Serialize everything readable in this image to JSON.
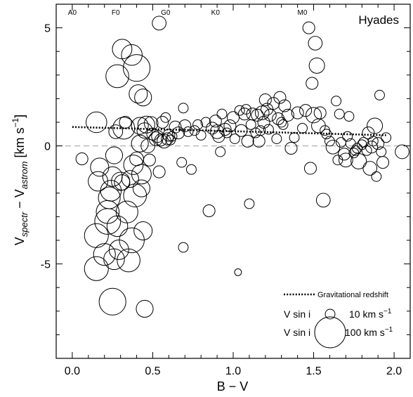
{
  "chart_data": {
    "type": "scatter",
    "title": "Hyades",
    "xlabel": "B − V",
    "ylabel": {
      "v1": "V",
      "sub1": "spectr",
      "minus": " − V",
      "sub2": "astrom",
      "units_open": " [km s",
      "units_exp": "−1",
      "units_close": "]"
    },
    "xlim": [
      -0.1,
      2.1
    ],
    "ylim": [
      -9.0,
      6.0
    ],
    "x_ticks": [
      0.0,
      0.5,
      1.0,
      1.5,
      2.0
    ],
    "x_tick_labels": [
      "0.0",
      "0.5",
      "1.0",
      "1.5",
      "2.0"
    ],
    "y_ticks": [
      -5,
      0,
      5
    ],
    "y_tick_labels": [
      "-5",
      "0",
      "5"
    ],
    "spectral_types": [
      {
        "label": "A0",
        "x": 0.0
      },
      {
        "label": "F0",
        "x": 0.27
      },
      {
        "label": "G0",
        "x": 0.58
      },
      {
        "label": "K0",
        "x": 0.89
      },
      {
        "label": "M0",
        "x": 1.43
      }
    ],
    "zero_line": {
      "y": 0,
      "style": "dashed",
      "color": "#b0b0b0"
    },
    "redshift_line": {
      "name": "Gravitational redshift",
      "x": [
        0.0,
        1.95
      ],
      "y": [
        0.8,
        0.45
      ]
    },
    "legend": {
      "position": "bottom-right",
      "vsini_label": "V sin i",
      "small": {
        "text": "10 km s",
        "exp": "−1",
        "vsini": 10
      },
      "large": {
        "text": "100 km s",
        "exp": "−1",
        "vsini": 100
      }
    },
    "points": [
      {
        "x": 0.06,
        "y": -0.55,
        "vsini": 15
      },
      {
        "x": 0.15,
        "y": 1.0,
        "vsini": 45
      },
      {
        "x": 0.16,
        "y": -1.5,
        "vsini": 40
      },
      {
        "x": 0.17,
        "y": -0.9,
        "vsini": 35
      },
      {
        "x": 0.15,
        "y": -3.8,
        "vsini": 60
      },
      {
        "x": 0.15,
        "y": -5.2,
        "vsini": 60
      },
      {
        "x": 0.2,
        "y": -4.6,
        "vsini": 50
      },
      {
        "x": 0.22,
        "y": -2.8,
        "vsini": 55
      },
      {
        "x": 0.22,
        "y": -3.2,
        "vsini": 70
      },
      {
        "x": 0.23,
        "y": -2.2,
        "vsini": 50
      },
      {
        "x": 0.24,
        "y": -1.9,
        "vsini": 45
      },
      {
        "x": 0.25,
        "y": -6.6,
        "vsini": 75
      },
      {
        "x": 0.26,
        "y": -4.8,
        "vsini": 45
      },
      {
        "x": 0.25,
        "y": -1.3,
        "vsini": 40
      },
      {
        "x": 0.26,
        "y": -0.4,
        "vsini": 30
      },
      {
        "x": 0.27,
        "y": 0.6,
        "vsini": 20
      },
      {
        "x": 0.28,
        "y": 2.95,
        "vsini": 55
      },
      {
        "x": 0.28,
        "y": -3.4,
        "vsini": 45
      },
      {
        "x": 0.29,
        "y": -4.4,
        "vsini": 40
      },
      {
        "x": 0.3,
        "y": -1.5,
        "vsini": 35
      },
      {
        "x": 0.31,
        "y": -1.55,
        "vsini": 25
      },
      {
        "x": 0.31,
        "y": 4.1,
        "vsini": 40
      },
      {
        "x": 0.32,
        "y": 0.75,
        "vsini": 50
      },
      {
        "x": 0.33,
        "y": 1.0,
        "vsini": 15
      },
      {
        "x": 0.34,
        "y": -2.8,
        "vsini": 50
      },
      {
        "x": 0.35,
        "y": -4.85,
        "vsini": 55
      },
      {
        "x": 0.36,
        "y": -1.4,
        "vsini": 30
      },
      {
        "x": 0.37,
        "y": -4.0,
        "vsini": 65
      },
      {
        "x": 0.37,
        "y": 3.85,
        "vsini": 45
      },
      {
        "x": 0.38,
        "y": -0.8,
        "vsini": 40
      },
      {
        "x": 0.39,
        "y": -2.1,
        "vsini": 55
      },
      {
        "x": 0.4,
        "y": 3.3,
        "vsini": 75
      },
      {
        "x": 0.4,
        "y": -0.55,
        "vsini": 20
      },
      {
        "x": 0.41,
        "y": 2.2,
        "vsini": 35
      },
      {
        "x": 0.42,
        "y": 0.85,
        "vsini": 30
      },
      {
        "x": 0.42,
        "y": 0.1,
        "vsini": 30
      },
      {
        "x": 0.43,
        "y": -1.2,
        "vsini": 40
      },
      {
        "x": 0.43,
        "y": -1.8,
        "vsini": 30
      },
      {
        "x": 0.44,
        "y": -3.6,
        "vsini": 35
      },
      {
        "x": 0.44,
        "y": 2.05,
        "vsini": 30
      },
      {
        "x": 0.45,
        "y": -6.9,
        "vsini": 30
      },
      {
        "x": 0.45,
        "y": 0.65,
        "vsini": 25
      },
      {
        "x": 0.46,
        "y": 0.9,
        "vsini": 30
      },
      {
        "x": 0.47,
        "y": 0.0,
        "vsini": 20
      },
      {
        "x": 0.48,
        "y": -0.6,
        "vsini": 15
      },
      {
        "x": 0.49,
        "y": 0.95,
        "vsini": 20
      },
      {
        "x": 0.5,
        "y": 0.5,
        "vsini": 15
      },
      {
        "x": 0.52,
        "y": 0.3,
        "vsini": 20
      },
      {
        "x": 0.53,
        "y": 0.4,
        "vsini": 15
      },
      {
        "x": 0.54,
        "y": -1.1,
        "vsini": 15
      },
      {
        "x": 0.54,
        "y": 5.2,
        "vsini": 20
      },
      {
        "x": 0.55,
        "y": 0.25,
        "vsini": 15
      },
      {
        "x": 0.56,
        "y": 1.0,
        "vsini": 15
      },
      {
        "x": 0.57,
        "y": 0.2,
        "vsini": 20
      },
      {
        "x": 0.58,
        "y": 1.2,
        "vsini": 10
      },
      {
        "x": 0.59,
        "y": 0.3,
        "vsini": 15
      },
      {
        "x": 0.6,
        "y": 0.45,
        "vsini": 15
      },
      {
        "x": 0.61,
        "y": 0.25,
        "vsini": 10
      },
      {
        "x": 0.62,
        "y": 0.4,
        "vsini": 10
      },
      {
        "x": 0.64,
        "y": 0.8,
        "vsini": 15
      },
      {
        "x": 0.66,
        "y": 0.55,
        "vsini": 15
      },
      {
        "x": 0.68,
        "y": -0.7,
        "vsini": 10
      },
      {
        "x": 0.69,
        "y": 1.6,
        "vsini": 10
      },
      {
        "x": 0.7,
        "y": 0.85,
        "vsini": 15
      },
      {
        "x": 0.72,
        "y": 0.6,
        "vsini": 10
      },
      {
        "x": 0.74,
        "y": -1.0,
        "vsini": 10
      },
      {
        "x": 0.76,
        "y": 0.65,
        "vsini": 10
      },
      {
        "x": 0.78,
        "y": 0.9,
        "vsini": 10
      },
      {
        "x": 0.69,
        "y": -4.3,
        "vsini": 10
      },
      {
        "x": 0.8,
        "y": 0.45,
        "vsini": 10
      },
      {
        "x": 0.83,
        "y": 1.0,
        "vsini": 10
      },
      {
        "x": 0.85,
        "y": -2.75,
        "vsini": 15
      },
      {
        "x": 0.87,
        "y": 0.75,
        "vsini": 15
      },
      {
        "x": 0.89,
        "y": 1.05,
        "vsini": 15
      },
      {
        "x": 0.9,
        "y": 0.6,
        "vsini": 20
      },
      {
        "x": 0.91,
        "y": 0.4,
        "vsini": 15
      },
      {
        "x": 0.92,
        "y": -0.25,
        "vsini": 10
      },
      {
        "x": 0.93,
        "y": 1.35,
        "vsini": 10
      },
      {
        "x": 0.95,
        "y": 0.7,
        "vsini": 15
      },
      {
        "x": 0.96,
        "y": 0.55,
        "vsini": 10
      },
      {
        "x": 0.98,
        "y": 0.85,
        "vsini": 15
      },
      {
        "x": 1.0,
        "y": 1.2,
        "vsini": 15
      },
      {
        "x": 1.01,
        "y": 0.3,
        "vsini": 10
      },
      {
        "x": 1.03,
        "y": -5.35,
        "vsini": 5
      },
      {
        "x": 1.04,
        "y": 1.5,
        "vsini": 10
      },
      {
        "x": 1.05,
        "y": 0.65,
        "vsini": 15
      },
      {
        "x": 1.07,
        "y": 1.35,
        "vsini": 15
      },
      {
        "x": 1.08,
        "y": 1.55,
        "vsini": 10
      },
      {
        "x": 1.09,
        "y": 0.2,
        "vsini": 15
      },
      {
        "x": 1.1,
        "y": -2.45,
        "vsini": 10
      },
      {
        "x": 1.11,
        "y": 0.9,
        "vsini": 10
      },
      {
        "x": 1.12,
        "y": 1.35,
        "vsini": 15
      },
      {
        "x": 1.14,
        "y": 0.55,
        "vsini": 10
      },
      {
        "x": 1.15,
        "y": 1.3,
        "vsini": 15
      },
      {
        "x": 1.16,
        "y": 0.2,
        "vsini": 15
      },
      {
        "x": 1.17,
        "y": 0.65,
        "vsini": 10
      },
      {
        "x": 1.18,
        "y": 1.4,
        "vsini": 20
      },
      {
        "x": 1.19,
        "y": 1.0,
        "vsini": 15
      },
      {
        "x": 1.2,
        "y": 1.95,
        "vsini": 15
      },
      {
        "x": 1.21,
        "y": 1.55,
        "vsini": 15
      },
      {
        "x": 1.22,
        "y": 0.7,
        "vsini": 10
      },
      {
        "x": 1.23,
        "y": 1.3,
        "vsini": 15
      },
      {
        "x": 1.25,
        "y": 1.8,
        "vsini": 15
      },
      {
        "x": 1.27,
        "y": 0.3,
        "vsini": 10
      },
      {
        "x": 1.28,
        "y": 1.15,
        "vsini": 15
      },
      {
        "x": 1.29,
        "y": 2.05,
        "vsini": 15
      },
      {
        "x": 1.3,
        "y": 1.0,
        "vsini": 10
      },
      {
        "x": 1.31,
        "y": 0.9,
        "vsini": 10
      },
      {
        "x": 1.32,
        "y": 1.7,
        "vsini": 15
      },
      {
        "x": 1.34,
        "y": 1.3,
        "vsini": 15
      },
      {
        "x": 1.36,
        "y": -0.1,
        "vsini": 15
      },
      {
        "x": 1.38,
        "y": 0.35,
        "vsini": 10
      },
      {
        "x": 1.4,
        "y": 1.4,
        "vsini": 15
      },
      {
        "x": 1.43,
        "y": 0.75,
        "vsini": 10
      },
      {
        "x": 1.45,
        "y": 1.5,
        "vsini": 15
      },
      {
        "x": 1.47,
        "y": 5.0,
        "vsini": 15
      },
      {
        "x": 1.48,
        "y": -0.95,
        "vsini": 15
      },
      {
        "x": 1.49,
        "y": 2.65,
        "vsini": 15
      },
      {
        "x": 1.5,
        "y": 1.3,
        "vsini": 25
      },
      {
        "x": 1.51,
        "y": 4.35,
        "vsini": 20
      },
      {
        "x": 1.52,
        "y": 3.4,
        "vsini": 25
      },
      {
        "x": 1.53,
        "y": 0.85,
        "vsini": 20
      },
      {
        "x": 1.54,
        "y": 1.4,
        "vsini": 15
      },
      {
        "x": 1.56,
        "y": -2.3,
        "vsini": 20
      },
      {
        "x": 1.57,
        "y": 0.65,
        "vsini": 10
      },
      {
        "x": 1.58,
        "y": 0.5,
        "vsini": 10
      },
      {
        "x": 1.6,
        "y": 0.2,
        "vsini": 10
      },
      {
        "x": 1.62,
        "y": -0.05,
        "vsini": 20
      },
      {
        "x": 1.64,
        "y": 1.9,
        "vsini": 10
      },
      {
        "x": 1.65,
        "y": -0.6,
        "vsini": 10
      },
      {
        "x": 1.66,
        "y": 1.35,
        "vsini": 10
      },
      {
        "x": 1.67,
        "y": 0.15,
        "vsini": 10
      },
      {
        "x": 1.69,
        "y": -0.35,
        "vsini": 15
      },
      {
        "x": 1.7,
        "y": -0.6,
        "vsini": 20
      },
      {
        "x": 1.71,
        "y": 0.4,
        "vsini": 10
      },
      {
        "x": 1.72,
        "y": 1.25,
        "vsini": 10
      },
      {
        "x": 1.73,
        "y": 0.1,
        "vsini": 10
      },
      {
        "x": 1.75,
        "y": -0.3,
        "vsini": 10
      },
      {
        "x": 1.76,
        "y": -0.2,
        "vsini": 10
      },
      {
        "x": 1.77,
        "y": -0.1,
        "vsini": 10
      },
      {
        "x": 1.78,
        "y": -0.65,
        "vsini": 25
      },
      {
        "x": 1.8,
        "y": 0.05,
        "vsini": 10
      },
      {
        "x": 1.81,
        "y": 0.15,
        "vsini": 10
      },
      {
        "x": 1.83,
        "y": -0.2,
        "vsini": 10
      },
      {
        "x": 1.84,
        "y": 0.55,
        "vsini": 15
      },
      {
        "x": 1.85,
        "y": -0.95,
        "vsini": 20
      },
      {
        "x": 1.86,
        "y": -0.05,
        "vsini": 15
      },
      {
        "x": 1.87,
        "y": 0.2,
        "vsini": 10
      },
      {
        "x": 1.88,
        "y": 0.85,
        "vsini": 25
      },
      {
        "x": 1.89,
        "y": -1.3,
        "vsini": 10
      },
      {
        "x": 1.9,
        "y": 0.1,
        "vsini": 15
      },
      {
        "x": 1.91,
        "y": 2.15,
        "vsini": 10
      },
      {
        "x": 1.92,
        "y": -0.25,
        "vsini": 10
      },
      {
        "x": 1.93,
        "y": -0.7,
        "vsini": 15
      },
      {
        "x": 1.95,
        "y": 0.35,
        "vsini": 10
      },
      {
        "x": 2.05,
        "y": -0.25,
        "vsini": 20
      }
    ]
  }
}
